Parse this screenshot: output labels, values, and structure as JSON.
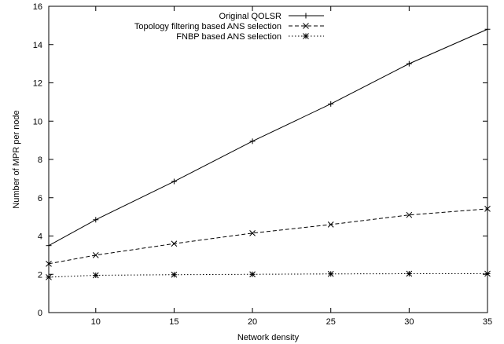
{
  "chart_data": {
    "type": "line",
    "title": "",
    "xlabel": "Network density",
    "ylabel": "Number of MPR per node",
    "xlim": [
      7,
      35
    ],
    "ylim": [
      0,
      16
    ],
    "xticks": [
      10,
      15,
      20,
      25,
      30,
      35
    ],
    "yticks": [
      0,
      2,
      4,
      6,
      8,
      10,
      12,
      14,
      16
    ],
    "grid": false,
    "legend_position": "top-right",
    "x": [
      7,
      10,
      15,
      20,
      25,
      30,
      35
    ],
    "series": [
      {
        "name": "Original QOLSR",
        "marker": "plus",
        "dash": "solid",
        "values": [
          3.5,
          4.85,
          6.85,
          8.95,
          10.9,
          13.0,
          14.8
        ]
      },
      {
        "name": "Topology filtering based ANS selection",
        "marker": "cross",
        "dash": "dashed",
        "values": [
          2.55,
          3.0,
          3.6,
          4.15,
          4.6,
          5.1,
          5.42
        ]
      },
      {
        "name": "FNBP based ANS selection",
        "marker": "star",
        "dash": "dotted",
        "values": [
          1.85,
          1.95,
          1.98,
          2.0,
          2.02,
          2.03,
          2.03
        ]
      }
    ]
  }
}
